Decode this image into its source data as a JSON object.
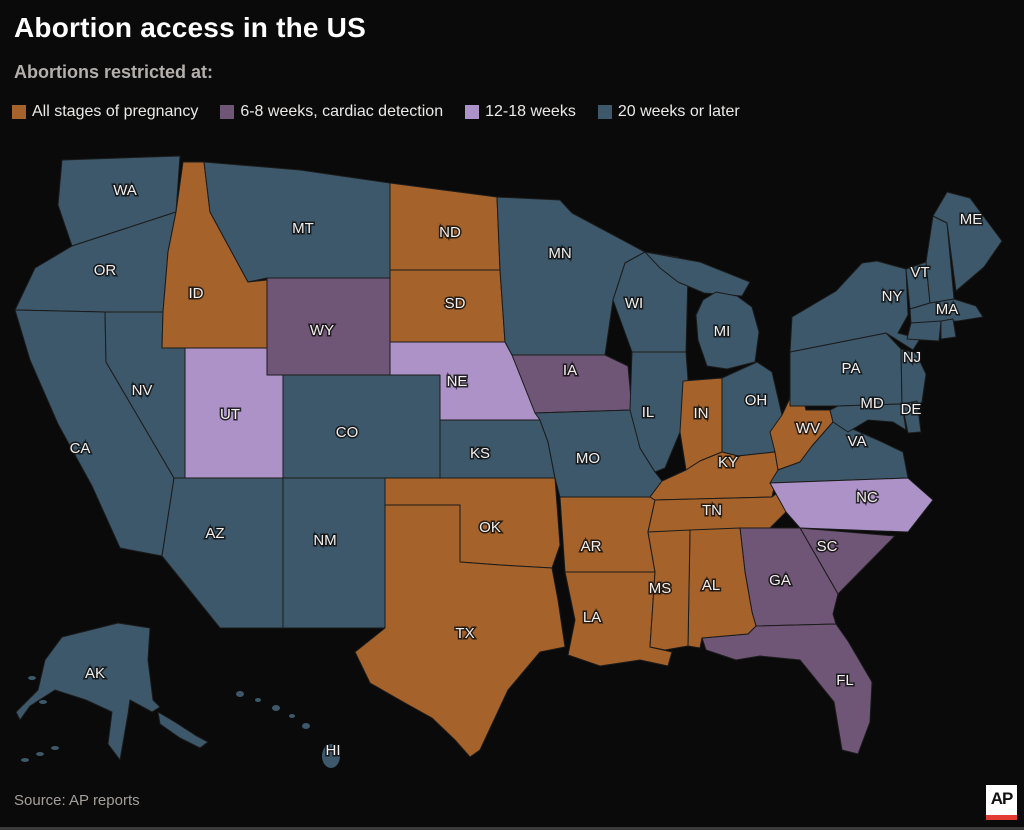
{
  "header": {
    "title": "Abortion access in the US",
    "subtitle": "Abortions restricted at:"
  },
  "colors": {
    "all_stages": "#a5622a",
    "cardiac": "#6f5576",
    "mid_term": "#ad92c8",
    "late_term": "#3c586a",
    "background": "#0a0a0a",
    "state_border": "#1b1b1b"
  },
  "legend": {
    "items": [
      {
        "label": "All stages of pregnancy",
        "category": "all_stages"
      },
      {
        "label": "6-8 weeks, cardiac detection",
        "category": "cardiac"
      },
      {
        "label": "12-18 weeks",
        "category": "mid_term"
      },
      {
        "label": "20 weeks or later",
        "category": "late_term"
      }
    ]
  },
  "map": {
    "states": [
      {
        "id": "WA",
        "label": "WA",
        "category": "late_term"
      },
      {
        "id": "OR",
        "label": "OR",
        "category": "late_term"
      },
      {
        "id": "CA",
        "label": "CA",
        "category": "late_term"
      },
      {
        "id": "NV",
        "label": "NV",
        "category": "late_term"
      },
      {
        "id": "ID",
        "label": "ID",
        "category": "all_stages"
      },
      {
        "id": "MT",
        "label": "MT",
        "category": "late_term"
      },
      {
        "id": "WY",
        "label": "WY",
        "category": "cardiac"
      },
      {
        "id": "UT",
        "label": "UT",
        "category": "mid_term"
      },
      {
        "id": "AZ",
        "label": "AZ",
        "category": "late_term"
      },
      {
        "id": "NM",
        "label": "NM",
        "category": "late_term"
      },
      {
        "id": "CO",
        "label": "CO",
        "category": "late_term"
      },
      {
        "id": "ND",
        "label": "ND",
        "category": "all_stages"
      },
      {
        "id": "SD",
        "label": "SD",
        "category": "all_stages"
      },
      {
        "id": "NE",
        "label": "NE",
        "category": "mid_term"
      },
      {
        "id": "KS",
        "label": "KS",
        "category": "late_term"
      },
      {
        "id": "OK",
        "label": "OK",
        "category": "all_stages"
      },
      {
        "id": "TX",
        "label": "TX",
        "category": "all_stages"
      },
      {
        "id": "MN",
        "label": "MN",
        "category": "late_term"
      },
      {
        "id": "IA",
        "label": "IA",
        "category": "cardiac"
      },
      {
        "id": "MO",
        "label": "MO",
        "category": "late_term"
      },
      {
        "id": "AR",
        "label": "AR",
        "category": "all_stages"
      },
      {
        "id": "LA",
        "label": "LA",
        "category": "all_stages"
      },
      {
        "id": "WI",
        "label": "WI",
        "category": "late_term"
      },
      {
        "id": "IL",
        "label": "IL",
        "category": "late_term"
      },
      {
        "id": "MI",
        "label": "MI",
        "category": "late_term"
      },
      {
        "id": "IN",
        "label": "IN",
        "category": "all_stages"
      },
      {
        "id": "OH",
        "label": "OH",
        "category": "late_term"
      },
      {
        "id": "KY",
        "label": "KY",
        "category": "all_stages"
      },
      {
        "id": "TN",
        "label": "TN",
        "category": "all_stages"
      },
      {
        "id": "WV",
        "label": "WV",
        "category": "all_stages"
      },
      {
        "id": "VA",
        "label": "VA",
        "category": "late_term"
      },
      {
        "id": "NC",
        "label": "NC",
        "category": "mid_term"
      },
      {
        "id": "SC",
        "label": "SC",
        "category": "cardiac"
      },
      {
        "id": "GA",
        "label": "GA",
        "category": "cardiac"
      },
      {
        "id": "FL",
        "label": "FL",
        "category": "cardiac"
      },
      {
        "id": "AL",
        "label": "AL",
        "category": "all_stages"
      },
      {
        "id": "MS",
        "label": "MS",
        "category": "all_stages"
      },
      {
        "id": "PA",
        "label": "PA",
        "category": "late_term"
      },
      {
        "id": "NY",
        "label": "NY",
        "category": "late_term"
      },
      {
        "id": "NJ",
        "label": "NJ",
        "category": "late_term"
      },
      {
        "id": "MD",
        "label": "MD",
        "category": "late_term"
      },
      {
        "id": "DE",
        "label": "DE",
        "category": "late_term"
      },
      {
        "id": "VT",
        "label": "VT",
        "category": "late_term"
      },
      {
        "id": "NH",
        "label": "",
        "category": "late_term"
      },
      {
        "id": "MA",
        "label": "MA",
        "category": "late_term"
      },
      {
        "id": "CT",
        "label": "",
        "category": "late_term"
      },
      {
        "id": "RI",
        "label": "",
        "category": "late_term"
      },
      {
        "id": "ME",
        "label": "ME",
        "category": "late_term"
      },
      {
        "id": "AK",
        "label": "AK",
        "category": "late_term"
      },
      {
        "id": "HI",
        "label": "HI",
        "category": "late_term"
      }
    ]
  },
  "footer": {
    "source": "Source: AP reports",
    "logo_text": "AP"
  }
}
